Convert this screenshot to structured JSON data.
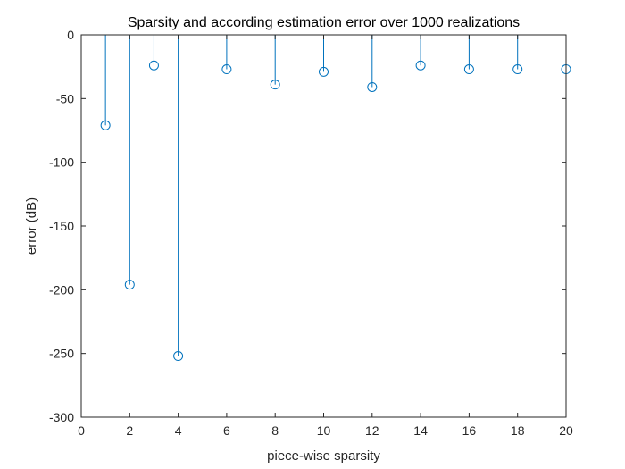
{
  "chart_data": {
    "type": "stem",
    "title": "Sparsity and according estimation error over 1000 realizations",
    "xlabel": "piece-wise sparsity",
    "ylabel": "error (dB)",
    "xlim": [
      0,
      20
    ],
    "ylim": [
      -300,
      0
    ],
    "xticks": [
      0,
      2,
      4,
      6,
      8,
      10,
      12,
      14,
      16,
      18,
      20
    ],
    "yticks": [
      0,
      -50,
      -100,
      -150,
      -200,
      -250,
      -300
    ],
    "xtick_labels": [
      "0",
      "2",
      "4",
      "6",
      "8",
      "10",
      "12",
      "14",
      "16",
      "18",
      "20"
    ],
    "ytick_labels": [
      "0",
      "-50",
      "-100",
      "-150",
      "-200",
      "-250",
      "-300"
    ],
    "grid": false,
    "marker": "circle",
    "series": [
      {
        "x": [
          1,
          2,
          3,
          4,
          6,
          8,
          10,
          12,
          14,
          16,
          18,
          20
        ],
        "y": [
          -71,
          -196,
          -24,
          -252,
          -27,
          -39,
          -29,
          -41,
          -24,
          -27,
          -27,
          -27
        ],
        "color": "#0072BD"
      }
    ]
  }
}
